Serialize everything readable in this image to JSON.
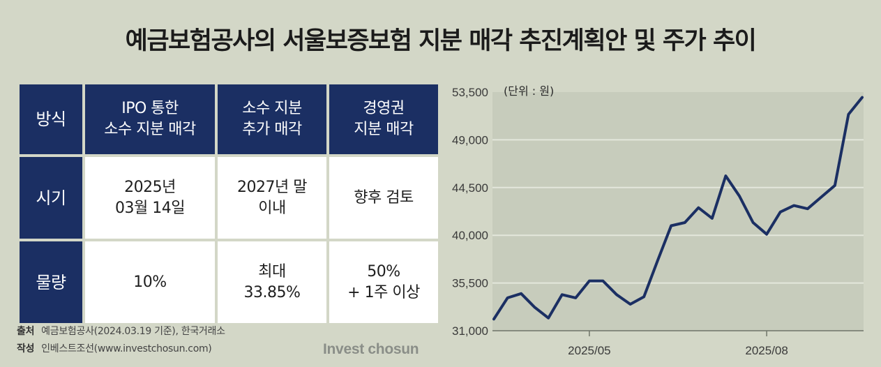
{
  "title": "예금보험공사의 서울보증보험 지분 매각 추진계획안 및 주가 추이",
  "table": {
    "headers": [
      "방식",
      "IPO 통한\n소수 지분 매각",
      "소수 지분\n추가 매각",
      "경영권\n지분 매각"
    ],
    "rows": [
      {
        "label": "시기",
        "cells": [
          "2025년\n03월 14일",
          "2027년 말\n이내",
          "향후 검토"
        ]
      },
      {
        "label": "물량",
        "cells": [
          "10%",
          "최대\n33.85%",
          "50%\n+ 1주 이상"
        ]
      }
    ]
  },
  "footer": {
    "source_label": "출처",
    "source_text": "예금보험공사(2024.03.19 기준), 한국거래소",
    "author_label": "작성",
    "author_text": "인베스트조선(www.investchosun.com)"
  },
  "logo": "Invest chosun",
  "chart_data": {
    "type": "line",
    "unit_label": "(단위 : 원)",
    "ylim": [
      31000,
      53500
    ],
    "yticks": [
      31000,
      35500,
      40000,
      44500,
      49000,
      53500
    ],
    "ytick_labels": [
      "31,000",
      "35,500",
      "40,000",
      "44,500",
      "49,000",
      "53,500"
    ],
    "xticks": [
      {
        "label": "2025/05",
        "index": 7
      },
      {
        "label": "2025/08",
        "index": 20
      }
    ],
    "grid": true,
    "series": [
      {
        "color": "#1b2f63",
        "values": [
          32100,
          34100,
          34500,
          33200,
          32200,
          34400,
          34100,
          35700,
          35700,
          34400,
          33500,
          34200,
          37600,
          40900,
          41200,
          42600,
          41600,
          45600,
          43700,
          41200,
          40100,
          42200,
          42800,
          42500,
          43600,
          44700,
          51400,
          53000
        ]
      }
    ]
  }
}
